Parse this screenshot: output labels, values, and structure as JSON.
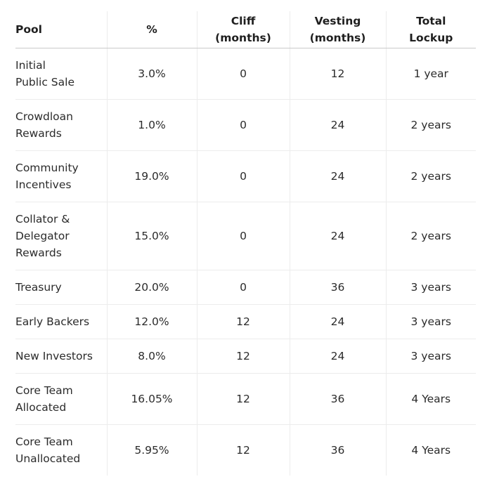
{
  "table": {
    "headers": [
      "Pool",
      "%",
      "Cliff\n(months)",
      "Vesting\n(months)",
      "Total\nLockup"
    ],
    "rows": [
      {
        "pool": "Initial\nPublic Sale",
        "percent": "3.0%",
        "cliff": "0",
        "vesting": "12",
        "lockup": "1 year"
      },
      {
        "pool": "Crowdloan\nRewards",
        "percent": "1.0%",
        "cliff": "0",
        "vesting": "24",
        "lockup": "2 years"
      },
      {
        "pool": "Community\nIncentives",
        "percent": "19.0%",
        "cliff": "0",
        "vesting": "24",
        "lockup": "2 years"
      },
      {
        "pool": "Collator &\nDelegator\nRewards",
        "percent": "15.0%",
        "cliff": "0",
        "vesting": "24",
        "lockup": "2 years"
      },
      {
        "pool": "Treasury",
        "percent": "20.0%",
        "cliff": "0",
        "vesting": "36",
        "lockup": "3 years"
      },
      {
        "pool": "Early Backers",
        "percent": "12.0%",
        "cliff": "12",
        "vesting": "24",
        "lockup": "3 years"
      },
      {
        "pool": "New Investors",
        "percent": "8.0%",
        "cliff": "12",
        "vesting": "24",
        "lockup": "3 years"
      },
      {
        "pool": "Core Team\nAllocated",
        "percent": "16.05%",
        "cliff": "12",
        "vesting": "36",
        "lockup": "4 Years"
      },
      {
        "pool": "Core Team\nUnallocated",
        "percent": "5.95%",
        "cliff": "12",
        "vesting": "36",
        "lockup": "4 Years"
      }
    ]
  }
}
